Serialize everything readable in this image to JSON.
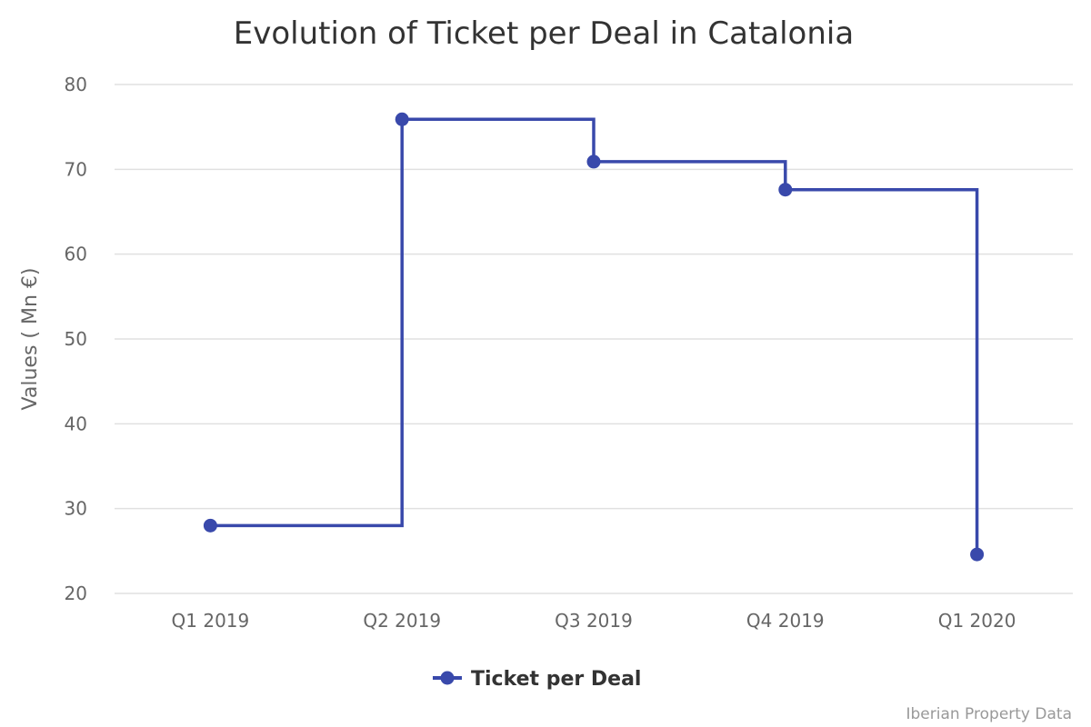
{
  "chart_data": {
    "type": "line",
    "step": "left",
    "title": "Evolution of Ticket per Deal in Catalonia",
    "xlabel": "",
    "ylabel": "Values ( Mn €)",
    "categories": [
      "Q1 2019",
      "Q2 2019",
      "Q3 2019",
      "Q4 2019",
      "Q1 2020"
    ],
    "ylim": [
      20,
      80
    ],
    "yticks": [
      20,
      30,
      40,
      50,
      60,
      70,
      80
    ],
    "grid": true,
    "legend_position": "bottom-center",
    "series": [
      {
        "name": "Ticket per Deal",
        "color": "#3949ab",
        "values": [
          28.0,
          75.9,
          70.9,
          67.6,
          24.6
        ]
      }
    ],
    "credit": "Iberian Property Data"
  }
}
